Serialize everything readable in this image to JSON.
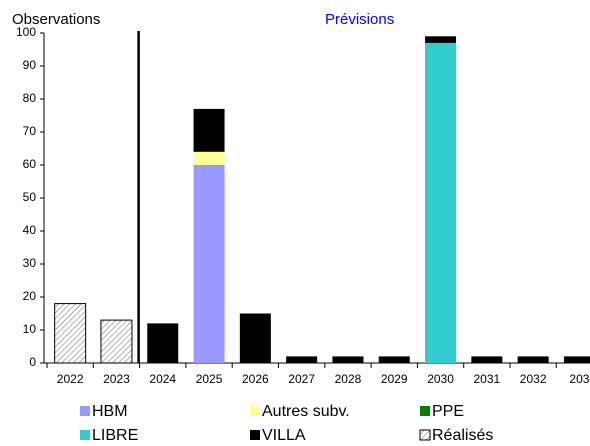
{
  "chart_data": {
    "type": "bar",
    "stacked": true,
    "annotations": [
      "Observations",
      "Prévisions"
    ],
    "categories": [
      "2022",
      "2023",
      "2024",
      "2025",
      "2026",
      "2027",
      "2028",
      "2029",
      "2030",
      "2031",
      "2032",
      "203"
    ],
    "series": [
      {
        "name": "HBM",
        "color": "#9999ff",
        "values": [
          null,
          null,
          null,
          60,
          null,
          null,
          null,
          null,
          null,
          null,
          null,
          null
        ]
      },
      {
        "name": "Autres subv.",
        "color": "#ffff99",
        "values": [
          null,
          null,
          null,
          4,
          null,
          null,
          null,
          null,
          null,
          null,
          null,
          null
        ]
      },
      {
        "name": "PPE",
        "color": "#008000",
        "values": [
          null,
          null,
          null,
          null,
          null,
          null,
          null,
          null,
          null,
          null,
          null,
          null
        ]
      },
      {
        "name": "LIBRE",
        "color": "#33cccc",
        "values": [
          null,
          null,
          null,
          null,
          null,
          null,
          null,
          null,
          97,
          null,
          null,
          null
        ]
      },
      {
        "name": "VILLA",
        "color": "#000000",
        "values": [
          null,
          null,
          12,
          13,
          15,
          2,
          2,
          2,
          2,
          2,
          2,
          2
        ]
      },
      {
        "name": "Réalisés",
        "color": "#808080",
        "hatched": true,
        "values": [
          18,
          13,
          null,
          null,
          null,
          null,
          null,
          null,
          null,
          null,
          null,
          null
        ]
      }
    ],
    "ylim": [
      0,
      100
    ],
    "yticks": [
      0,
      10,
      20,
      30,
      40,
      50,
      60,
      70,
      80,
      90,
      100
    ],
    "grid": false
  }
}
